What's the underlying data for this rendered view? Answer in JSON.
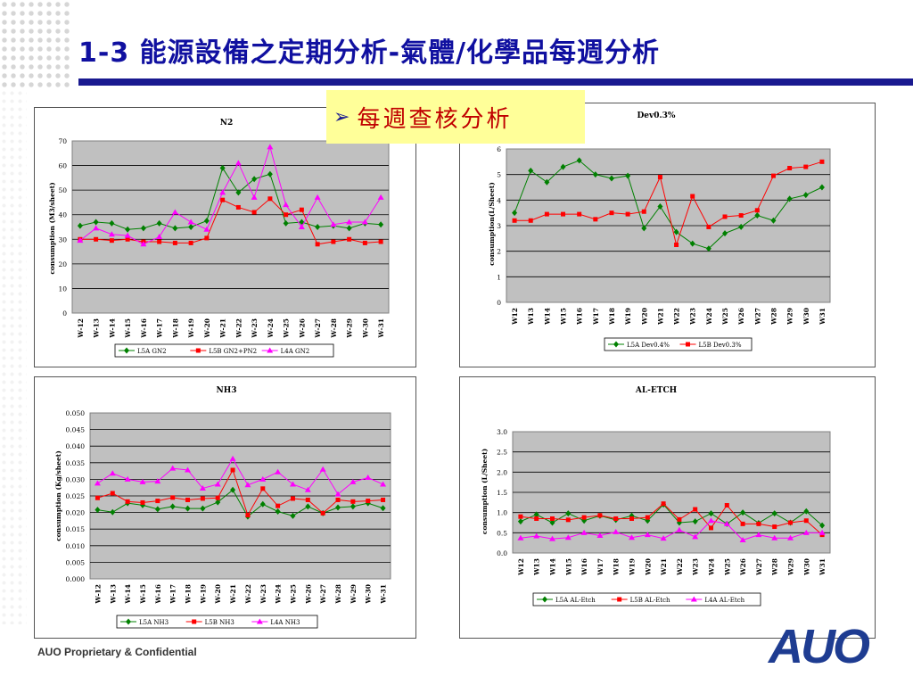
{
  "title": "1-3 能源設備之定期分析-氣體/化學品每週分析",
  "callout": {
    "arrow": "➢",
    "text": "每週查核分析"
  },
  "footer": "AUO Proprietary & Confidential",
  "logo": "AUO",
  "colors": {
    "green": "#008000",
    "red": "#ff0000",
    "magenta": "#ff00ff",
    "plot_bg": "#c0c0c0",
    "title_blue": "#1a1a90"
  },
  "chart_data": [
    {
      "type": "line",
      "title": "N2",
      "ylabel": "consumption (M3/sheet)",
      "ylim": [
        0,
        70
      ],
      "yticks": [
        "0",
        "10",
        "20",
        "30",
        "40",
        "50",
        "60",
        "70"
      ],
      "categories": [
        "W-12",
        "W-13",
        "W-14",
        "W-15",
        "W-16",
        "W-17",
        "W-18",
        "W-19",
        "W-20",
        "W-21",
        "W-22",
        "W-23",
        "W-24",
        "W-25",
        "W-26",
        "W-27",
        "W-28",
        "W-29",
        "W-30",
        "W-31"
      ],
      "series": [
        {
          "name": "L5A GN2",
          "color": "#008000",
          "marker": "diamond",
          "values": [
            35.5,
            37,
            36.5,
            34,
            34.5,
            36.5,
            34.5,
            35,
            37.5,
            59,
            49,
            54.5,
            56.5,
            36.5,
            37,
            35,
            35.5,
            34.5,
            36.5,
            36
          ]
        },
        {
          "name": "L5B GN2+PN2",
          "color": "#ff0000",
          "marker": "square",
          "values": [
            30,
            30,
            29.5,
            30,
            29,
            29,
            28.5,
            28.5,
            30.5,
            46,
            43,
            41,
            46.5,
            40,
            42,
            28,
            29,
            30,
            28.5,
            29
          ]
        },
        {
          "name": "L4A GN2",
          "color": "#ff00ff",
          "marker": "triangle",
          "values": [
            29.5,
            34.5,
            32,
            31.5,
            28,
            31,
            41,
            37,
            34,
            49,
            61,
            47,
            67.5,
            44,
            35,
            47,
            36,
            37,
            37,
            47
          ]
        }
      ]
    },
    {
      "type": "line",
      "title": "Dev0.3%",
      "ylabel": "consumption(L/Sheet)",
      "ylim": [
        0,
        6
      ],
      "yticks": [
        "0",
        "1",
        "2",
        "3",
        "4",
        "5",
        "6"
      ],
      "categories": [
        "W12",
        "W13",
        "W14",
        "W15",
        "W16",
        "W17",
        "W18",
        "W19",
        "W20",
        "W21",
        "W22",
        "W23",
        "W24",
        "W25",
        "W26",
        "W27",
        "W28",
        "W29",
        "W30",
        "W31"
      ],
      "series": [
        {
          "name": "L5A Dev0.4%",
          "color": "#008000",
          "marker": "diamond",
          "values": [
            3.5,
            5.15,
            4.7,
            5.3,
            5.55,
            5,
            4.85,
            4.95,
            2.9,
            3.75,
            2.75,
            2.3,
            2.1,
            2.7,
            2.95,
            3.4,
            3.2,
            4.05,
            4.2,
            4.5
          ]
        },
        {
          "name": "L5B Dev0.3%",
          "color": "#ff0000",
          "marker": "square",
          "values": [
            3.2,
            3.2,
            3.45,
            3.45,
            3.45,
            3.25,
            3.5,
            3.45,
            3.55,
            4.9,
            2.25,
            4.15,
            2.95,
            3.35,
            3.4,
            3.6,
            4.95,
            5.25,
            5.3,
            5.5
          ]
        }
      ]
    },
    {
      "type": "line",
      "title": "NH3",
      "ylabel": "consumption (Kg/sheet)",
      "ylim": [
        0,
        0.05
      ],
      "yticks": [
        "0.000",
        "0.005",
        "0.010",
        "0.015",
        "0.020",
        "0.025",
        "0.030",
        "0.035",
        "0.040",
        "0.045",
        "0.050"
      ],
      "categories": [
        "W-12",
        "W-13",
        "W-14",
        "W-15",
        "W-16",
        "W-17",
        "W-18",
        "W-19",
        "W-20",
        "W-21",
        "W-22",
        "W-23",
        "W-24",
        "W-25",
        "W-26",
        "W-27",
        "W-28",
        "W-29",
        "W-30",
        "W-31"
      ],
      "series": [
        {
          "name": "L5A NH3",
          "color": "#008000",
          "marker": "diamond",
          "values": [
            0.0208,
            0.0201,
            0.0228,
            0.0222,
            0.021,
            0.0218,
            0.0212,
            0.0212,
            0.0231,
            0.0268,
            0.0188,
            0.0225,
            0.0203,
            0.019,
            0.0218,
            0.0198,
            0.0215,
            0.0218,
            0.0228,
            0.0213
          ]
        },
        {
          "name": "L5B NH3",
          "color": "#ff0000",
          "marker": "square",
          "values": [
            0.0244,
            0.0258,
            0.0233,
            0.023,
            0.0235,
            0.0245,
            0.0238,
            0.0242,
            0.0244,
            0.0328,
            0.0192,
            0.0272,
            0.022,
            0.0242,
            0.0238,
            0.0198,
            0.0238,
            0.0233,
            0.0235,
            0.0238
          ]
        },
        {
          "name": "L4A NH3",
          "color": "#ff00ff",
          "marker": "triangle",
          "values": [
            0.0288,
            0.0318,
            0.03,
            0.0292,
            0.0294,
            0.0333,
            0.0328,
            0.0273,
            0.0285,
            0.0362,
            0.0283,
            0.03,
            0.0322,
            0.0285,
            0.0268,
            0.033,
            0.0255,
            0.0292,
            0.0305,
            0.0285
          ]
        }
      ]
    },
    {
      "type": "line",
      "title": "AL-ETCH",
      "ylabel": "consumption (L/Sheet)",
      "ylim": [
        0,
        3
      ],
      "yticks": [
        "0.0",
        "0.5",
        "1.0",
        "1.5",
        "2.0",
        "2.5",
        "3.0"
      ],
      "categories": [
        "W12",
        "W13",
        "W14",
        "W15",
        "W16",
        "W17",
        "W18",
        "W19",
        "W20",
        "W21",
        "W22",
        "W23",
        "W24",
        "W25",
        "W26",
        "W27",
        "W28",
        "W29",
        "W30",
        "W31"
      ],
      "series": [
        {
          "name": "L5A AL-Etch",
          "color": "#008000",
          "marker": "diamond",
          "values": [
            0.78,
            0.95,
            0.75,
            0.98,
            0.8,
            0.92,
            0.82,
            0.92,
            0.8,
            1.2,
            0.75,
            0.78,
            0.98,
            0.72,
            1,
            0.74,
            0.98,
            0.75,
            1.03,
            0.68
          ]
        },
        {
          "name": "L5B AL-Etch",
          "color": "#ff0000",
          "marker": "square",
          "values": [
            0.9,
            0.85,
            0.85,
            0.82,
            0.88,
            0.93,
            0.85,
            0.85,
            0.88,
            1.22,
            0.83,
            1.08,
            0.62,
            1.18,
            0.72,
            0.72,
            0.65,
            0.75,
            0.8,
            0.45
          ]
        },
        {
          "name": "L4A AL-Etch",
          "color": "#ff00ff",
          "marker": "triangle",
          "values": [
            0.37,
            0.42,
            0.35,
            0.38,
            0.5,
            0.43,
            0.52,
            0.38,
            0.45,
            0.36,
            0.57,
            0.4,
            0.8,
            0.72,
            0.32,
            0.45,
            0.37,
            0.37,
            0.5,
            0.5
          ]
        }
      ]
    }
  ]
}
